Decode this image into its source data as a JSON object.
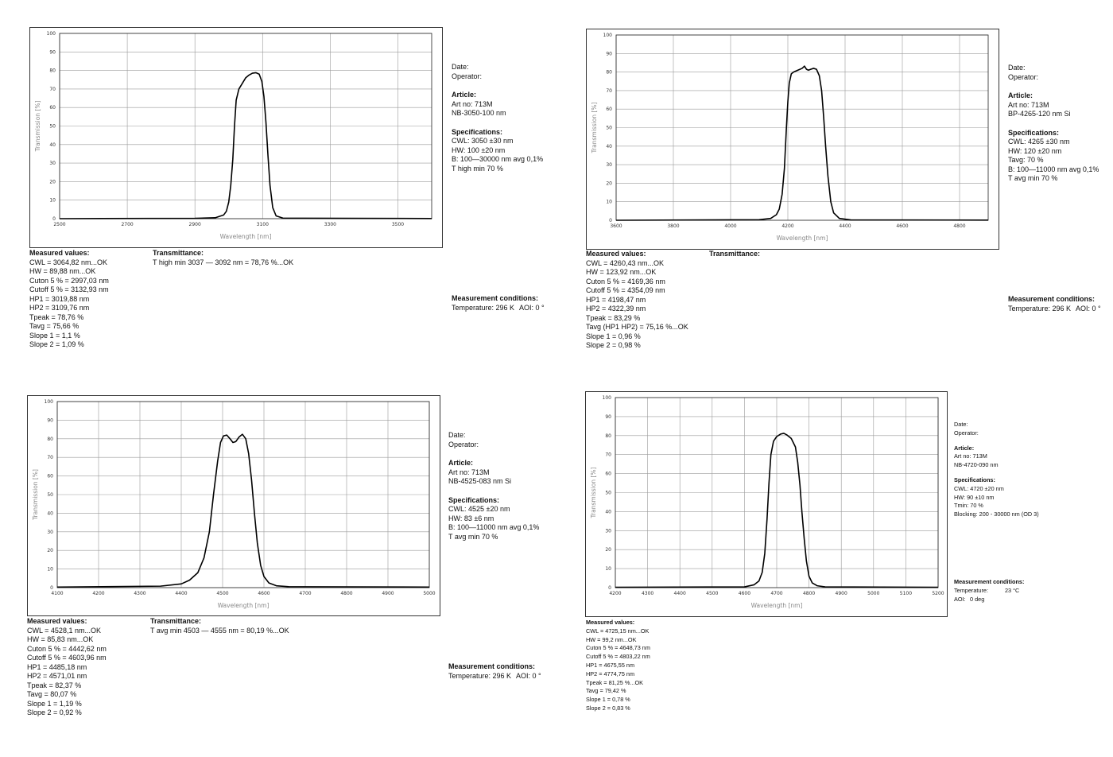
{
  "axis_labels": {
    "y": "Transmission [%]",
    "x": "Wavelength [nm]"
  },
  "panels": [
    {
      "info": {
        "date": "Date:",
        "operator": "Operator:",
        "article_head": "Article:",
        "article": [
          "Art no: 713M",
          "NB-3050-100 nm"
        ],
        "spec_head": "Specifications:",
        "specs": [
          "CWL: 3050 ±30 nm",
          "HW: 100 ±20 nm",
          "B: 100—30000 nm avg 0,1%",
          "T high min 70 %"
        ],
        "meas_head": "Measurement conditions:",
        "meas": [
          "Temperature: 296 K",
          "AOI: 0 °"
        ]
      },
      "measured": {
        "head": "Measured values:",
        "lines": [
          "CWL = 3064,82 nm...OK",
          "HW = 89,88 nm...OK",
          "Cuton 5 % = 2997,03 nm",
          "Cutoff 5 % = 3132,93 nm",
          "HP1 = 3019,88 nm",
          "HP2 = 3109,76 nm",
          "Tpeak = 78,76 %",
          "Tavg = 75,66 %",
          "Slope 1 = 1,1 %",
          "Slope 2 = 1,09 %"
        ]
      },
      "transmittance": {
        "head": "Transmittance:",
        "lines": [
          "T high min 3037 — 3092 nm = 78,76 %...OK"
        ]
      }
    },
    {
      "info": {
        "date": "Date:",
        "operator": "Operator:",
        "article_head": "Article:",
        "article": [
          "Art no: 713M",
          "BP-4265-120 nm Si"
        ],
        "spec_head": "Specifications:",
        "specs": [
          "CWL: 4265 ±30 nm",
          "HW: 120 ±20 nm",
          "Tavg: 70 %",
          "B: 100—11000 nm avg 0,1%",
          "T avg min 70 %"
        ],
        "meas_head": "Measurement conditions:",
        "meas": [
          "Temperature: 296 K",
          "AOI: 0 °"
        ]
      },
      "measured": {
        "head": "Measured values:",
        "lines": [
          "CWL = 4260,43 nm...OK",
          "HW = 123,92 nm...OK",
          "Cuton 5 % = 4169,36 nm",
          "Cutoff 5 % = 4354,09 nm",
          "HP1 = 4198,47 nm",
          "HP2 = 4322,39 nm",
          "Tpeak = 83,29 %",
          "Tavg (HP1 HP2) = 75,16 %...OK",
          "Slope 1 = 0,96 %",
          "Slope 2 = 0,98 %"
        ]
      },
      "transmittance": {
        "head": "Transmittance:",
        "lines": []
      }
    },
    {
      "info": {
        "date": "Date:",
        "operator": "Operator:",
        "article_head": "Article:",
        "article": [
          "Art no: 713M",
          "NB-4525-083 nm Si"
        ],
        "spec_head": "Specifications:",
        "specs": [
          "CWL: 4525 ±20 nm",
          "HW: 83 ±6 nm",
          "B: 100—11000 nm avg 0,1%",
          "T avg min 70 %"
        ],
        "meas_head": "Measurement conditions:",
        "meas": [
          "Temperature: 296 K",
          "AOI: 0 °"
        ]
      },
      "measured": {
        "head": "Measured values:",
        "lines": [
          "CWL = 4528,1 nm...OK",
          "HW = 85,83 nm...OK",
          "Cuton 5 % = 4442,62 nm",
          "Cutoff 5 % = 4603,96 nm",
          "HP1 = 4485,18 nm",
          "HP2 = 4571,01 nm",
          "Tpeak = 82,37 %",
          "Tavg = 80,07 %",
          "Slope 1 = 1,19 %",
          "Slope 2 = 0,92 %"
        ]
      },
      "transmittance": {
        "head": "Transmittance:",
        "lines": [
          "T avg min 4503 — 4555 nm = 80,19 %...OK"
        ]
      }
    },
    {
      "info": {
        "date": "Date:",
        "operator": "Operator:",
        "article_head": "Article:",
        "article": [
          "Art no: 713M",
          "NB-4720-090 nm"
        ],
        "spec_head": "Specifications:",
        "specs": [
          "CWL: 4720 ±20 nm",
          "HW: 90 ±10 nm",
          "Tmin: 70 %",
          "Blocking: 200 - 30000 nm (OD 3)"
        ],
        "meas_head": "Measurement conditions:",
        "meas": [
          "Temperature:",
          "23 °C",
          "AOI:",
          "0 deg"
        ]
      },
      "measured": {
        "head": "Measured values:",
        "lines": [
          "CWL = 4725,15 nm...OK",
          "HW = 99,2 nm...OK",
          "Cuton 5 % = 4648,73 nm",
          "Cutoff 5 % = 4803,22 nm",
          "HP1 = 4675,55 nm",
          "HP2 = 4774,75 nm",
          "Tpeak = 81,25 %...OK",
          "Tavg = 79,42 %",
          "Slope 1 = 0,78 %",
          "Slope 2 = 0,83 %"
        ]
      },
      "transmittance": null
    }
  ],
  "chart_data": [
    {
      "type": "line",
      "xlabel": "Wavelength [nm]",
      "ylabel": "Transmission [%]",
      "xlim": [
        2500,
        3600
      ],
      "ylim": [
        0,
        100
      ],
      "xticks": [
        2500,
        2700,
        2900,
        3100,
        3300,
        3500
      ],
      "xtick_labels": [
        "2500",
        "2700",
        "2900",
        "3100",
        "3300",
        "3500"
      ],
      "yticks": [
        0,
        10,
        20,
        30,
        40,
        50,
        60,
        70,
        80,
        90,
        100
      ],
      "grid": true,
      "series": [
        {
          "x": [
            2500,
            2900,
            2960,
            2985,
            2993,
            3000,
            3006,
            3012,
            3017,
            3022,
            3030,
            3040,
            3050,
            3060,
            3070,
            3080,
            3090,
            3098,
            3104,
            3110,
            3116,
            3122,
            3130,
            3140,
            3160,
            3600
          ],
          "y": [
            0,
            0.2,
            0.5,
            2,
            4,
            9,
            18,
            32,
            50,
            64,
            70,
            73,
            76,
            77.5,
            78.5,
            78.8,
            78,
            74,
            66,
            52,
            34,
            18,
            6,
            1.5,
            0.3,
            0.1
          ]
        }
      ]
    },
    {
      "type": "line",
      "xlabel": "Wavelength [nm]",
      "ylabel": "Transmission [%]",
      "xlim": [
        3600,
        4900
      ],
      "ylim": [
        0,
        100
      ],
      "xticks": [
        3600,
        3800,
        4000,
        4200,
        4400,
        4600,
        4800
      ],
      "xtick_labels": [
        "3600",
        "3800",
        "4000",
        "4200",
        "4400",
        "4600",
        "4800"
      ],
      "yticks": [
        0,
        10,
        20,
        30,
        40,
        50,
        60,
        70,
        80,
        90,
        100
      ],
      "grid": true,
      "series": [
        {
          "x": [
            3600,
            4100,
            4140,
            4160,
            4170,
            4180,
            4188,
            4195,
            4200,
            4205,
            4212,
            4220,
            4235,
            4250,
            4258,
            4265,
            4272,
            4280,
            4290,
            4300,
            4310,
            4318,
            4325,
            4332,
            4340,
            4350,
            4360,
            4380,
            4420,
            4900
          ],
          "y": [
            0,
            0.3,
            1,
            3,
            6,
            14,
            28,
            50,
            64,
            74,
            79,
            80,
            81,
            82,
            83.2,
            81.5,
            81,
            81.5,
            82,
            81.5,
            78,
            70,
            56,
            40,
            24,
            10,
            4,
            1,
            0.2,
            0.1
          ]
        }
      ]
    },
    {
      "type": "line",
      "xlabel": "Wavelength [nm]",
      "ylabel": "Transmission [%]",
      "xlim": [
        4100,
        5000
      ],
      "ylim": [
        0,
        100
      ],
      "xticks": [
        4100,
        4200,
        4300,
        4400,
        4500,
        4600,
        4700,
        4800,
        4900,
        5000
      ],
      "xtick_labels": [
        "4100",
        "4200",
        "4300",
        "4400",
        "4500",
        "4600",
        "4700",
        "4800",
        "4900",
        "5000"
      ],
      "yticks": [
        0,
        10,
        20,
        30,
        40,
        50,
        60,
        70,
        80,
        90,
        100
      ],
      "grid": true,
      "series": [
        {
          "x": [
            4100,
            4350,
            4400,
            4420,
            4440,
            4455,
            4468,
            4478,
            4488,
            4495,
            4502,
            4510,
            4518,
            4525,
            4532,
            4540,
            4548,
            4556,
            4563,
            4570,
            4577,
            4584,
            4592,
            4600,
            4612,
            4630,
            4660,
            5000
          ],
          "y": [
            0.3,
            0.8,
            2,
            4,
            8,
            16,
            30,
            50,
            68,
            78,
            81.5,
            82,
            80,
            78,
            78.5,
            81,
            82.4,
            80,
            72,
            58,
            40,
            24,
            12,
            6,
            2.5,
            1,
            0.5,
            0.3
          ]
        }
      ]
    },
    {
      "type": "line",
      "xlabel": "Wavelength [nm]",
      "ylabel": "Transmission [%]",
      "xlim": [
        4200,
        5200
      ],
      "ylim": [
        0,
        100
      ],
      "xticks": [
        4200,
        4300,
        4400,
        4500,
        4600,
        4700,
        4800,
        4900,
        5000,
        5100,
        5200
      ],
      "xtick_labels": [
        "4200",
        "4300",
        "4400",
        "4500",
        "4600",
        "4700",
        "4800",
        "4900",
        "5000",
        "5100",
        "5200"
      ],
      "yticks": [
        0,
        10,
        20,
        30,
        40,
        50,
        60,
        70,
        80,
        90,
        100
      ],
      "grid": true,
      "series": [
        {
          "x": [
            4200,
            4600,
            4630,
            4645,
            4655,
            4663,
            4670,
            4676,
            4682,
            4690,
            4700,
            4712,
            4722,
            4732,
            4745,
            4758,
            4765,
            4772,
            4778,
            4785,
            4792,
            4800,
            4810,
            4825,
            4850,
            5200
          ],
          "y": [
            0.2,
            0.4,
            1.5,
            3.5,
            8,
            18,
            36,
            55,
            70,
            77,
            79.5,
            80.8,
            81.2,
            80.3,
            78.5,
            74,
            66,
            54,
            40,
            26,
            14,
            6,
            2.5,
            1,
            0.4,
            0.2
          ]
        }
      ]
    }
  ]
}
